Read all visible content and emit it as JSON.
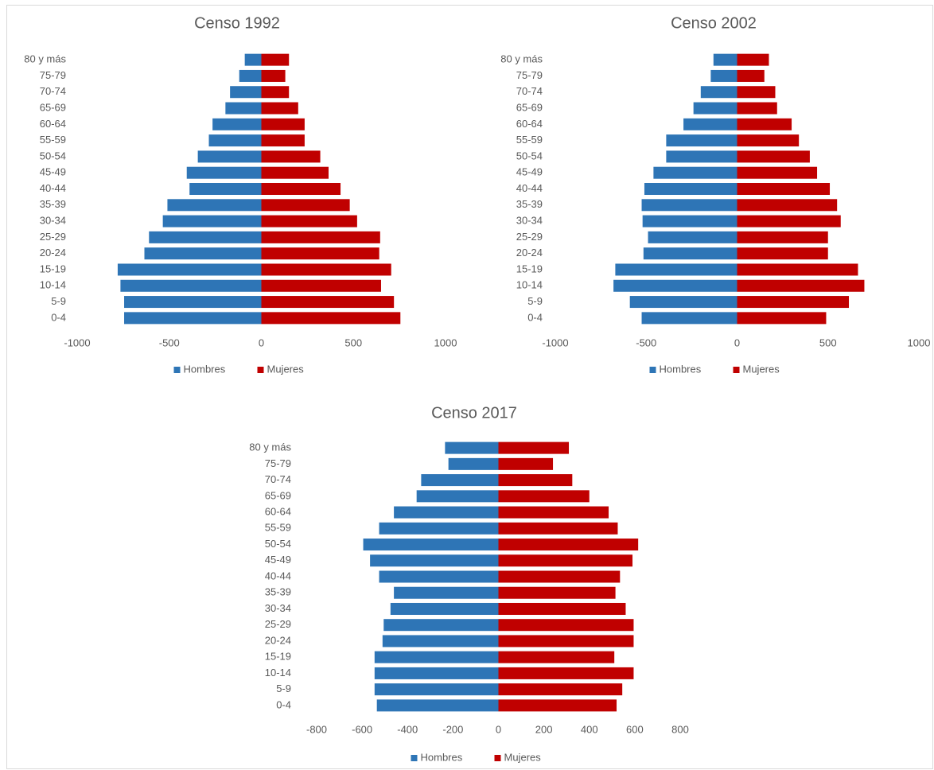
{
  "chart_data": [
    {
      "type": "pyramid",
      "title": "Censo 1992",
      "categories": [
        "80 y más",
        "75-79",
        "70-74",
        "65-69",
        "60-64",
        "55-59",
        "50-54",
        "45-49",
        "40-44",
        "35-39",
        "30-34",
        "25-29",
        "20-24",
        "15-19",
        "10-14",
        "5-9",
        "0-4"
      ],
      "series": [
        {
          "name": "Hombres",
          "color": "#2e75b6",
          "values": [
            -90,
            -120,
            -170,
            -195,
            -265,
            -285,
            -345,
            -405,
            -390,
            -510,
            -535,
            -610,
            -635,
            -780,
            -765,
            -745,
            -745
          ]
        },
        {
          "name": "Mujeres",
          "color": "#c00000",
          "values": [
            150,
            130,
            150,
            200,
            235,
            235,
            320,
            365,
            430,
            480,
            520,
            645,
            640,
            705,
            650,
            720,
            755
          ]
        }
      ],
      "xlim": [
        -1000,
        1000
      ],
      "xticks": [
        -1000,
        -500,
        0,
        500,
        1000
      ],
      "legend": "bottom"
    },
    {
      "type": "pyramid",
      "title": "Censo 2002",
      "categories": [
        "80 y más",
        "75-79",
        "70-74",
        "65-69",
        "60-64",
        "55-59",
        "50-54",
        "45-49",
        "40-44",
        "35-39",
        "30-34",
        "25-29",
        "20-24",
        "15-19",
        "10-14",
        "5-9",
        "0-4"
      ],
      "series": [
        {
          "name": "Hombres",
          "color": "#2e75b6",
          "values": [
            -130,
            -145,
            -200,
            -240,
            -295,
            -390,
            -390,
            -460,
            -510,
            -525,
            -520,
            -490,
            -515,
            -670,
            -680,
            -590,
            -525
          ]
        },
        {
          "name": "Mujeres",
          "color": "#c00000",
          "values": [
            175,
            150,
            210,
            220,
            300,
            340,
            400,
            440,
            510,
            550,
            570,
            500,
            500,
            665,
            700,
            615,
            490
          ]
        }
      ],
      "xlim": [
        -1000,
        1000
      ],
      "xticks": [
        -1000,
        -500,
        0,
        500,
        1000
      ],
      "legend": "bottom"
    },
    {
      "type": "pyramid",
      "title": "Censo 2017",
      "categories": [
        "80 y más",
        "75-79",
        "70-74",
        "65-69",
        "60-64",
        "55-59",
        "50-54",
        "45-49",
        "40-44",
        "35-39",
        "30-34",
        "25-29",
        "20-24",
        "15-19",
        "10-14",
        "5-9",
        "0-4"
      ],
      "series": [
        {
          "name": "Hombres",
          "color": "#2e75b6",
          "values": [
            -235,
            -220,
            -340,
            -360,
            -460,
            -525,
            -595,
            -565,
            -525,
            -460,
            -475,
            -505,
            -510,
            -545,
            -545,
            -545,
            -535
          ]
        },
        {
          "name": "Mujeres",
          "color": "#c00000",
          "values": [
            310,
            240,
            325,
            400,
            485,
            525,
            615,
            590,
            535,
            515,
            560,
            595,
            595,
            510,
            595,
            545,
            520
          ]
        }
      ],
      "xlim": [
        -800,
        800
      ],
      "xticks": [
        -800,
        -600,
        -400,
        -200,
        0,
        200,
        400,
        600,
        800
      ],
      "legend": "bottom"
    }
  ]
}
